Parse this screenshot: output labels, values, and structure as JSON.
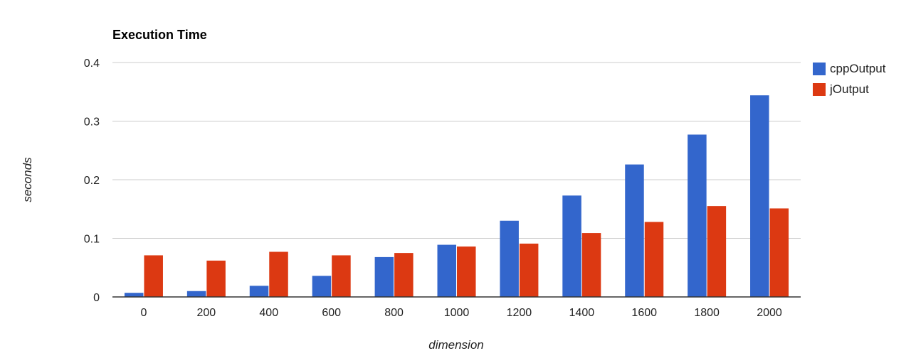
{
  "chart_data": {
    "type": "bar",
    "title": "Execution Time",
    "xlabel": "dimension",
    "ylabel": "seconds",
    "categories": [
      "0",
      "200",
      "400",
      "600",
      "800",
      "1000",
      "1200",
      "1400",
      "1600",
      "1800",
      "2000"
    ],
    "series": [
      {
        "name": "cppOutput",
        "color": "#3366cc",
        "values": [
          0.007,
          0.01,
          0.019,
          0.036,
          0.068,
          0.089,
          0.13,
          0.173,
          0.226,
          0.277,
          0.344
        ]
      },
      {
        "name": "jOutput",
        "color": "#dc3912",
        "values": [
          0.071,
          0.062,
          0.077,
          0.071,
          0.075,
          0.086,
          0.091,
          0.109,
          0.128,
          0.155,
          0.151
        ]
      }
    ],
    "ylim": [
      0,
      0.4
    ],
    "yticks": [
      {
        "value": 0,
        "label": "0"
      },
      {
        "value": 0.1,
        "label": "0.1"
      },
      {
        "value": 0.2,
        "label": "0.2"
      },
      {
        "value": 0.3,
        "label": "0.3"
      },
      {
        "value": 0.4,
        "label": "0.4"
      }
    ],
    "grid": true,
    "legend_position": "right"
  }
}
